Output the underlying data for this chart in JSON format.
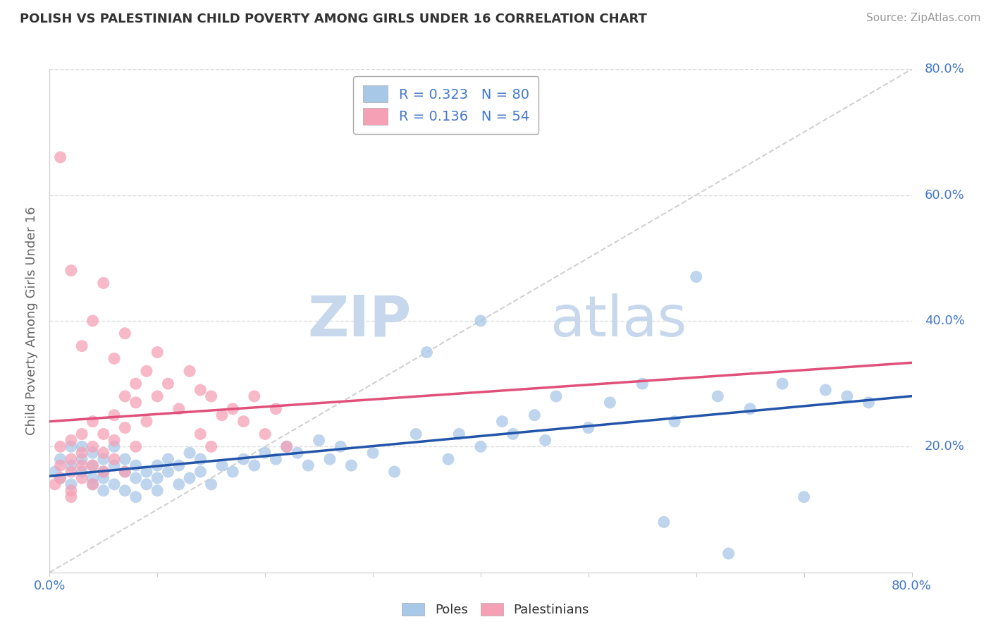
{
  "title": "POLISH VS PALESTINIAN CHILD POVERTY AMONG GIRLS UNDER 16 CORRELATION CHART",
  "source": "Source: ZipAtlas.com",
  "ylabel": "Child Poverty Among Girls Under 16",
  "xlim": [
    0,
    0.8
  ],
  "ylim": [
    0,
    0.8
  ],
  "poles_R": 0.323,
  "poles_N": 80,
  "palestinians_R": 0.136,
  "palestinians_N": 54,
  "poles_color": "#a8c8e8",
  "poles_line_color": "#2255aa",
  "palestinians_color": "#f5a0b5",
  "palestinians_line_color": "#e0507a",
  "diag_color": "#cccccc",
  "grid_color": "#dddddd",
  "legend_label_poles": "Poles",
  "legend_label_palestinians": "Palestinians",
  "background_color": "#ffffff",
  "title_color": "#333333",
  "axis_label_color": "#4477cc",
  "ylabel_color": "#666666",
  "source_color": "#999999",
  "watermark_zip_color": "#c8d8ec",
  "watermark_atlas_color": "#c8d8ec",
  "poles_x": [
    0.005,
    0.01,
    0.01,
    0.02,
    0.02,
    0.02,
    0.03,
    0.03,
    0.03,
    0.04,
    0.04,
    0.04,
    0.04,
    0.05,
    0.05,
    0.05,
    0.05,
    0.06,
    0.06,
    0.06,
    0.07,
    0.07,
    0.07,
    0.08,
    0.08,
    0.08,
    0.09,
    0.09,
    0.1,
    0.1,
    0.1,
    0.11,
    0.11,
    0.12,
    0.12,
    0.13,
    0.13,
    0.14,
    0.14,
    0.15,
    0.16,
    0.17,
    0.18,
    0.19,
    0.2,
    0.21,
    0.22,
    0.23,
    0.24,
    0.25,
    0.26,
    0.27,
    0.28,
    0.3,
    0.32,
    0.34,
    0.35,
    0.37,
    0.38,
    0.4,
    0.4,
    0.42,
    0.43,
    0.45,
    0.46,
    0.47,
    0.5,
    0.52,
    0.55,
    0.58,
    0.6,
    0.62,
    0.65,
    0.68,
    0.7,
    0.72,
    0.74,
    0.76,
    0.63,
    0.57
  ],
  "poles_y": [
    0.16,
    0.18,
    0.15,
    0.2,
    0.17,
    0.14,
    0.18,
    0.16,
    0.2,
    0.15,
    0.17,
    0.19,
    0.14,
    0.13,
    0.16,
    0.18,
    0.15,
    0.17,
    0.14,
    0.2,
    0.16,
    0.13,
    0.18,
    0.15,
    0.17,
    0.12,
    0.16,
    0.14,
    0.15,
    0.17,
    0.13,
    0.16,
    0.18,
    0.14,
    0.17,
    0.15,
    0.19,
    0.16,
    0.18,
    0.14,
    0.17,
    0.16,
    0.18,
    0.17,
    0.19,
    0.18,
    0.2,
    0.19,
    0.17,
    0.21,
    0.18,
    0.2,
    0.17,
    0.19,
    0.16,
    0.22,
    0.35,
    0.18,
    0.22,
    0.4,
    0.2,
    0.24,
    0.22,
    0.25,
    0.21,
    0.28,
    0.23,
    0.27,
    0.3,
    0.24,
    0.47,
    0.28,
    0.26,
    0.3,
    0.12,
    0.29,
    0.28,
    0.27,
    0.03,
    0.08
  ],
  "palestinians_x": [
    0.005,
    0.01,
    0.01,
    0.01,
    0.02,
    0.02,
    0.02,
    0.02,
    0.02,
    0.03,
    0.03,
    0.03,
    0.03,
    0.04,
    0.04,
    0.04,
    0.04,
    0.05,
    0.05,
    0.05,
    0.06,
    0.06,
    0.06,
    0.07,
    0.07,
    0.07,
    0.08,
    0.08,
    0.09,
    0.09,
    0.1,
    0.1,
    0.11,
    0.12,
    0.13,
    0.14,
    0.14,
    0.15,
    0.15,
    0.16,
    0.17,
    0.18,
    0.19,
    0.2,
    0.21,
    0.22,
    0.03,
    0.04,
    0.05,
    0.06,
    0.07,
    0.08,
    0.01,
    0.02
  ],
  "palestinians_y": [
    0.14,
    0.17,
    0.2,
    0.15,
    0.16,
    0.21,
    0.13,
    0.18,
    0.12,
    0.19,
    0.22,
    0.15,
    0.17,
    0.2,
    0.14,
    0.24,
    0.17,
    0.22,
    0.16,
    0.19,
    0.25,
    0.18,
    0.21,
    0.23,
    0.28,
    0.16,
    0.27,
    0.2,
    0.24,
    0.32,
    0.28,
    0.35,
    0.3,
    0.26,
    0.32,
    0.29,
    0.22,
    0.28,
    0.2,
    0.25,
    0.26,
    0.24,
    0.28,
    0.22,
    0.26,
    0.2,
    0.36,
    0.4,
    0.46,
    0.34,
    0.38,
    0.3,
    0.66,
    0.48
  ]
}
